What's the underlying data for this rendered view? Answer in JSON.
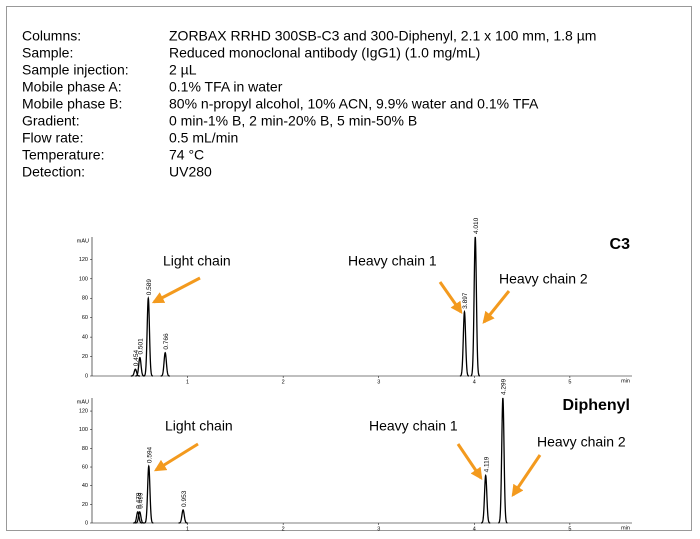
{
  "conditions": [
    {
      "label": "Columns:",
      "value": "ZORBAX RRHD 300SB-C3 and 300-Diphenyl, 2.1 x 100 mm, 1.8 µm"
    },
    {
      "label": "Sample:",
      "value": "Reduced monoclonal antibody (IgG1) (1.0 mg/mL)"
    },
    {
      "label": "Sample injection:",
      "value": "2 µL"
    },
    {
      "label": "Mobile phase A:",
      "value": "0.1% TFA in water"
    },
    {
      "label": "Mobile phase B:",
      "value": "80% n-propyl alcohol, 10% ACN, 9.9% water and 0.1% TFA"
    },
    {
      "label": "Gradient:",
      "value": "0 min-1% B,  2 min-20% B, 5 min-50% B"
    },
    {
      "label": "Flow rate:",
      "value": "0.5 mL/min"
    },
    {
      "label": "Temperature:",
      "value": "74 °C"
    },
    {
      "label": "Detection:",
      "value": "UV280"
    }
  ],
  "chart_data": [
    {
      "type": "line",
      "title": "C3",
      "ylabel": "mAU",
      "xlabel": "min",
      "color": "#000000",
      "xlim": [
        0,
        5.65
      ],
      "ylim": [
        0,
        143
      ],
      "xticks": [
        1,
        2,
        3,
        4,
        5
      ],
      "yticks": [
        0,
        20,
        40,
        60,
        80,
        100,
        120
      ],
      "peaks": {
        "x": [
          0.454,
          0.501,
          0.589,
          0.766,
          3.897,
          4.01
        ],
        "values": [
          7,
          19,
          80,
          24,
          66,
          143
        ],
        "x_labels": [
          "0.454",
          "0.501",
          "0.589",
          "0.766",
          "3.897",
          "4.010"
        ]
      },
      "annotations": [
        "Light chain",
        "Heavy chain 1",
        "Heavy chain 2"
      ],
      "annotation_color": "#f39a1e"
    },
    {
      "type": "line",
      "title": "Diphenyl",
      "ylabel": "mAU",
      "xlabel": "min",
      "color": "#000000",
      "xlim": [
        0,
        5.65
      ],
      "ylim": [
        0,
        134
      ],
      "xticks": [
        1,
        2,
        3,
        4,
        5
      ],
      "yticks": [
        0,
        20,
        40,
        60,
        80,
        100,
        120
      ],
      "peaks": {
        "x": [
          0.479,
          0.499,
          0.594,
          0.953,
          4.119,
          4.299
        ],
        "values": [
          12,
          12,
          61,
          14,
          51,
          134
        ],
        "x_labels": [
          "0.479",
          "0.499",
          "0.594",
          "0.953",
          "4.119",
          "4.299"
        ]
      },
      "annotations": [
        "Light chain",
        "Heavy chain 1",
        "Heavy chain 2"
      ],
      "annotation_color": "#f39a1e"
    }
  ]
}
